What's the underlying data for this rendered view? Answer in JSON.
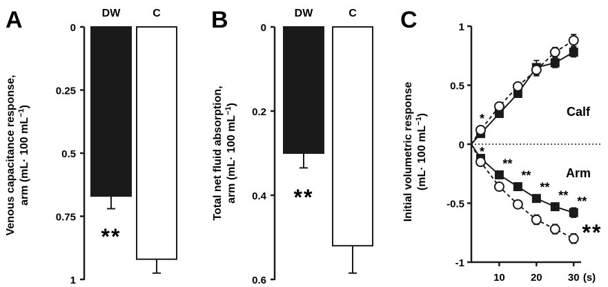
{
  "chart_data": [
    {
      "panel": "A",
      "type": "bar",
      "categories": [
        "DW",
        "C"
      ],
      "values": [
        0.67,
        0.92
      ],
      "errors": [
        0.05,
        0.055
      ],
      "ylim": [
        0,
        1
      ],
      "inverted_axis": true,
      "yticks": [
        "0",
        "0.25",
        "0.5",
        "0.75",
        "1"
      ],
      "ytick_values": [
        0,
        0.25,
        0.5,
        0.75,
        1
      ],
      "ylabel_line1": "Venous capacitance response,",
      "ylabel_line2": "arm (mL· 100 mL",
      "ylabel_sup": "−1",
      "ylabel_end": ")",
      "significance": "**",
      "bar_colors": [
        "#1a1a1a",
        "#ffffff"
      ]
    },
    {
      "panel": "B",
      "type": "bar",
      "categories": [
        "DW",
        "C"
      ],
      "values": [
        0.3,
        0.52
      ],
      "errors": [
        0.035,
        0.065
      ],
      "ylim": [
        0,
        0.6
      ],
      "inverted_axis": true,
      "yticks": [
        "0",
        "0.2",
        "0.4",
        "0.6"
      ],
      "ytick_values": [
        0,
        0.2,
        0.4,
        0.6
      ],
      "ylabel_line1": "Total net fluid absorption,",
      "ylabel_line2": "arm (mL· 100 mL",
      "ylabel_sup": "−1",
      "ylabel_end": ")",
      "significance": "**",
      "bar_colors": [
        "#1a1a1a",
        "#ffffff"
      ]
    },
    {
      "panel": "C",
      "type": "line",
      "x": [
        5,
        10,
        15,
        20,
        25,
        30
      ],
      "xlim": [
        2.5,
        32
      ],
      "ylim": [
        -1,
        1
      ],
      "xticks": [
        "10",
        "20",
        "30"
      ],
      "xtick_values": [
        10,
        20,
        30
      ],
      "xunit": "(s)",
      "yticks": [
        "1",
        "0.5",
        "0",
        "-0.5",
        "-1"
      ],
      "ytick_values": [
        1,
        0.5,
        0,
        -0.5,
        -1
      ],
      "ylabel_line1": "Initial volumetric response",
      "ylabel_line2": "(mL· 100 mL",
      "ylabel_sup": "−1",
      "ylabel_end": ")",
      "series": [
        {
          "group": "Calf",
          "marker": "square-filled",
          "style": "solid",
          "values": [
            0.09,
            0.26,
            0.43,
            0.65,
            0.69,
            0.78
          ],
          "errors": [
            0.02,
            0.02,
            0.03,
            0.06,
            0.04,
            0.04
          ]
        },
        {
          "group": "Calf",
          "marker": "circle-open",
          "style": "dashed",
          "values": [
            0.12,
            0.32,
            0.49,
            0.63,
            0.78,
            0.88
          ],
          "errors": [
            0.02,
            0.02,
            0.03,
            0.05,
            0.04,
            0.05
          ]
        },
        {
          "group": "Arm",
          "marker": "square-filled",
          "style": "solid",
          "values": [
            -0.12,
            -0.26,
            -0.36,
            -0.46,
            -0.53,
            -0.58
          ],
          "errors": [
            0.02,
            0.02,
            0.02,
            0.03,
            0.03,
            0.04
          ]
        },
        {
          "group": "Arm",
          "marker": "circle-open",
          "style": "dashed",
          "values": [
            -0.15,
            -0.36,
            -0.51,
            -0.64,
            -0.72,
            -0.8
          ],
          "errors": [
            0.02,
            0.02,
            0.03,
            0.04,
            0.04,
            0.04
          ]
        }
      ],
      "group_labels": [
        "Calf",
        "Arm"
      ],
      "calf_marks": [
        {
          "x": 5,
          "text": "*"
        }
      ],
      "arm_marks": [
        {
          "x": 5,
          "text": "*"
        },
        {
          "x": 10,
          "text": "**"
        },
        {
          "x": 15,
          "text": "**"
        },
        {
          "x": 20,
          "text": "**"
        },
        {
          "x": 25,
          "text": "**"
        },
        {
          "x": 30,
          "text": "**"
        }
      ],
      "overall_significance": "**"
    }
  ]
}
